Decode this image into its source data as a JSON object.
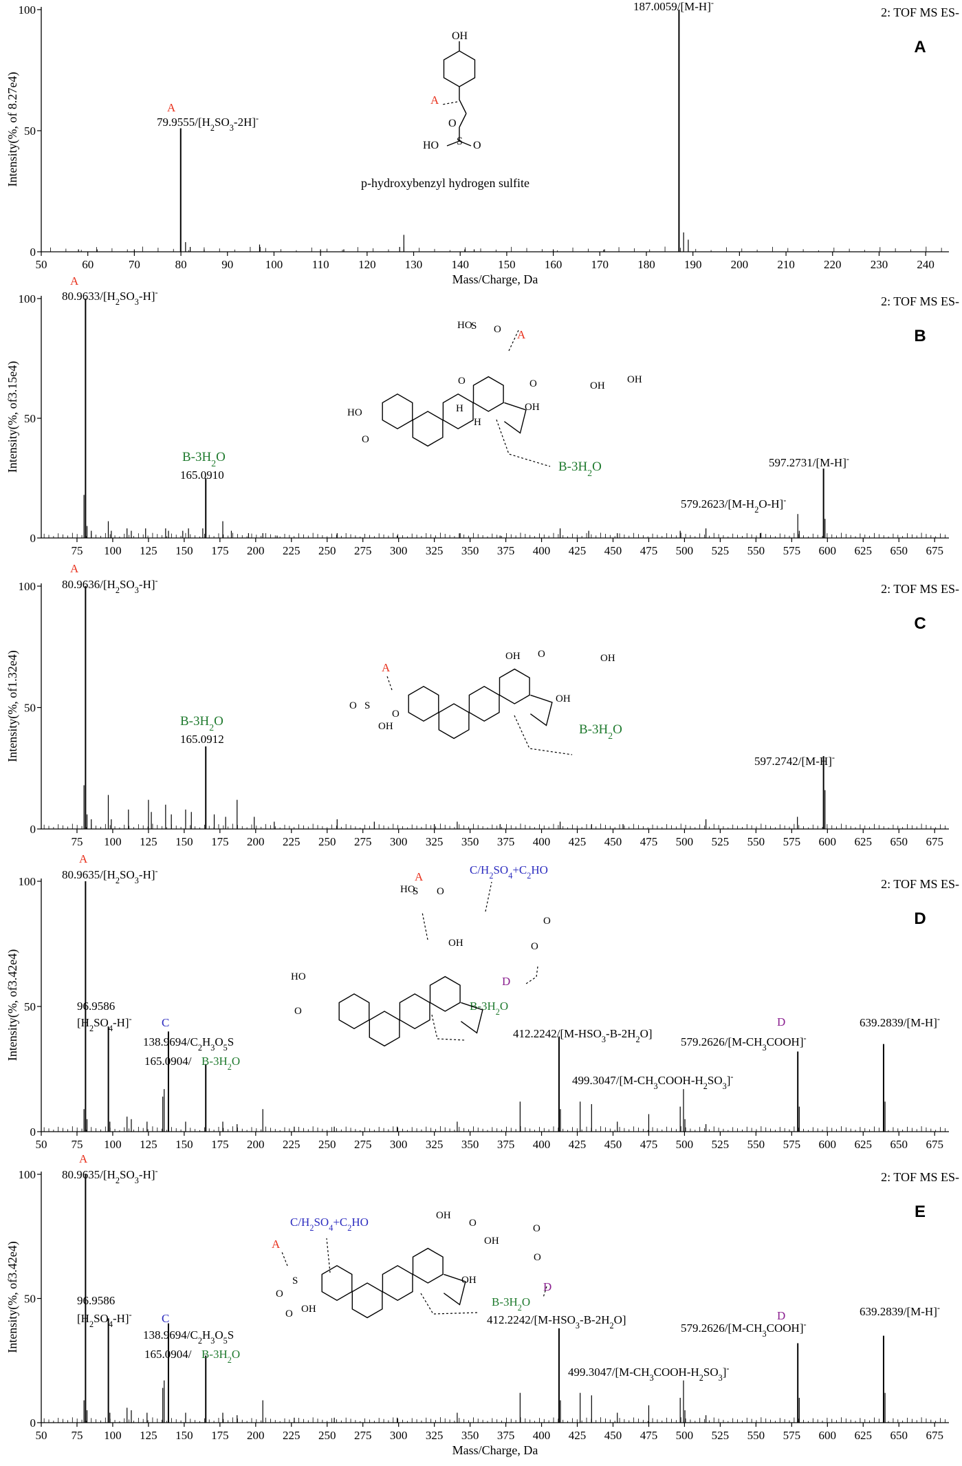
{
  "chart_data": [
    {
      "type": "bar",
      "panel_letter": "A",
      "scan_label": "2: TOF MS ES-",
      "ylabel": "Intensity(%, of 8.27e4)",
      "xlabel": "Mass/Charge, Da",
      "xlim": [
        50,
        245
      ],
      "ylim": [
        0,
        100
      ],
      "xticks": [
        50,
        60,
        70,
        80,
        90,
        100,
        110,
        120,
        130,
        140,
        150,
        160,
        170,
        180,
        190,
        200,
        210,
        220,
        230,
        240
      ],
      "yticks": [
        0,
        50,
        100
      ],
      "peaks": [
        {
          "x": 79.9555,
          "y": 51
        },
        {
          "x": 81.0,
          "y": 4
        },
        {
          "x": 82.0,
          "y": 2
        },
        {
          "x": 96.9,
          "y": 3
        },
        {
          "x": 97.0,
          "y": 2
        },
        {
          "x": 127.0,
          "y": 2
        },
        {
          "x": 127.9,
          "y": 7
        },
        {
          "x": 141.0,
          "y": 1
        },
        {
          "x": 143.0,
          "y": 1
        },
        {
          "x": 187.0059,
          "y": 100
        },
        {
          "x": 188.0,
          "y": 8
        },
        {
          "x": 189.0,
          "y": 5
        },
        {
          "x": 58.0,
          "y": 1
        },
        {
          "x": 62.0,
          "y": 1
        },
        {
          "x": 70.0,
          "y": 1
        },
        {
          "x": 85.0,
          "y": 1
        },
        {
          "x": 110.0,
          "y": 1
        },
        {
          "x": 115.0,
          "y": 1
        },
        {
          "x": 160.0,
          "y": 1
        },
        {
          "x": 171.0,
          "y": 1
        }
      ],
      "annotations": [
        {
          "text": "79.9555/[H2SO3-2H]-",
          "x": 79.9555
        },
        {
          "text": "187.0059/[M-H]-",
          "x": 187.0059
        }
      ],
      "fragment_labels": [
        {
          "text": "A",
          "x": 79.9555
        }
      ],
      "structure_caption": "p-hydroxybenzyl hydrogen sulfite"
    },
    {
      "type": "bar",
      "panel_letter": "B",
      "scan_label": "2: TOF MS ES-",
      "ylabel": "Intensity(%, of3.15e4)",
      "xlim": [
        50,
        685
      ],
      "ylim": [
        0,
        100
      ],
      "xticks": [
        75,
        100,
        125,
        150,
        175,
        200,
        225,
        250,
        275,
        300,
        325,
        350,
        375,
        400,
        425,
        450,
        475,
        500,
        525,
        550,
        575,
        600,
        625,
        650,
        675
      ],
      "yticks": [
        0,
        50,
        100
      ],
      "peaks": [
        {
          "x": 80.9633,
          "y": 100
        },
        {
          "x": 79.9,
          "y": 18
        },
        {
          "x": 82.0,
          "y": 5
        },
        {
          "x": 85.0,
          "y": 3
        },
        {
          "x": 96.9,
          "y": 7
        },
        {
          "x": 99.0,
          "y": 3
        },
        {
          "x": 110.0,
          "y": 4
        },
        {
          "x": 113.0,
          "y": 3
        },
        {
          "x": 123.0,
          "y": 4
        },
        {
          "x": 137.0,
          "y": 4
        },
        {
          "x": 139.0,
          "y": 3
        },
        {
          "x": 149.0,
          "y": 3
        },
        {
          "x": 153.0,
          "y": 4
        },
        {
          "x": 163.0,
          "y": 4
        },
        {
          "x": 165.091,
          "y": 25
        },
        {
          "x": 177.0,
          "y": 7
        },
        {
          "x": 183.0,
          "y": 3
        },
        {
          "x": 195.0,
          "y": 2
        },
        {
          "x": 205.0,
          "y": 2
        },
        {
          "x": 215.0,
          "y": 1
        },
        {
          "x": 257.0,
          "y": 2
        },
        {
          "x": 299.0,
          "y": 1
        },
        {
          "x": 343.0,
          "y": 2
        },
        {
          "x": 371.0,
          "y": 1
        },
        {
          "x": 413.0,
          "y": 4
        },
        {
          "x": 433.0,
          "y": 3
        },
        {
          "x": 453.0,
          "y": 2
        },
        {
          "x": 497.0,
          "y": 3
        },
        {
          "x": 515.0,
          "y": 4
        },
        {
          "x": 553.0,
          "y": 2
        },
        {
          "x": 579.2623,
          "y": 10
        },
        {
          "x": 580.3,
          "y": 3
        },
        {
          "x": 597.2731,
          "y": 29
        },
        {
          "x": 598.3,
          "y": 8
        }
      ],
      "annotations": [
        {
          "text": "80.9633/[H2SO3-H]-",
          "x": 80.9633
        },
        {
          "text": "165.0910",
          "x": 165.091
        },
        {
          "text": "579.2623/[M-H2O-H]-",
          "x": 579.2623
        },
        {
          "text": "597.2731/[M-H]-",
          "x": 597.2731
        }
      ],
      "fragment_labels": [
        {
          "text": "A",
          "x": 80.9633
        },
        {
          "text": "B-3H2O",
          "x": 165.091
        }
      ],
      "structure_labels": [
        "A",
        "B-3H2O"
      ]
    },
    {
      "type": "bar",
      "panel_letter": "C",
      "scan_label": "2: TOF MS ES-",
      "ylabel": "Intensity(%, of1.32e4)",
      "xlim": [
        50,
        685
      ],
      "ylim": [
        0,
        100
      ],
      "xticks": [
        75,
        100,
        125,
        150,
        175,
        200,
        225,
        250,
        275,
        300,
        325,
        350,
        375,
        400,
        425,
        450,
        475,
        500,
        525,
        550,
        575,
        600,
        625,
        650,
        675
      ],
      "yticks": [
        0,
        50,
        100
      ],
      "peaks": [
        {
          "x": 80.9636,
          "y": 100
        },
        {
          "x": 79.9,
          "y": 18
        },
        {
          "x": 82.0,
          "y": 6
        },
        {
          "x": 85.0,
          "y": 4
        },
        {
          "x": 96.9,
          "y": 14
        },
        {
          "x": 99.0,
          "y": 4
        },
        {
          "x": 111.0,
          "y": 8
        },
        {
          "x": 125.0,
          "y": 12
        },
        {
          "x": 127.0,
          "y": 7
        },
        {
          "x": 137.0,
          "y": 10
        },
        {
          "x": 141.0,
          "y": 6
        },
        {
          "x": 151.0,
          "y": 8
        },
        {
          "x": 155.0,
          "y": 7
        },
        {
          "x": 165.0912,
          "y": 34
        },
        {
          "x": 171.0,
          "y": 6
        },
        {
          "x": 179.0,
          "y": 5
        },
        {
          "x": 187.0,
          "y": 12
        },
        {
          "x": 199.0,
          "y": 5
        },
        {
          "x": 213.0,
          "y": 3
        },
        {
          "x": 257.0,
          "y": 4
        },
        {
          "x": 283.0,
          "y": 3
        },
        {
          "x": 325.0,
          "y": 2
        },
        {
          "x": 341.0,
          "y": 3
        },
        {
          "x": 371.0,
          "y": 2
        },
        {
          "x": 413.0,
          "y": 3
        },
        {
          "x": 435.0,
          "y": 2
        },
        {
          "x": 457.0,
          "y": 2
        },
        {
          "x": 515.0,
          "y": 4
        },
        {
          "x": 579.0,
          "y": 5
        },
        {
          "x": 597.2742,
          "y": 30
        },
        {
          "x": 598.3,
          "y": 16
        }
      ],
      "annotations": [
        {
          "text": "80.9636/[H2SO3-H]-",
          "x": 80.9636
        },
        {
          "text": "165.0912",
          "x": 165.0912
        },
        {
          "text": "597.2742/[M-H]-",
          "x": 597.2742
        }
      ],
      "fragment_labels": [
        {
          "text": "A",
          "x": 80.9636
        },
        {
          "text": "B-3H2O",
          "x": 165.0912
        }
      ],
      "structure_labels": [
        "A",
        "B-3H2O"
      ]
    },
    {
      "type": "bar",
      "panel_letter": "D",
      "scan_label": "2: TOF MS ES-",
      "ylabel": "Intensity(%, of3.42e4)",
      "xlim": [
        50,
        685
      ],
      "ylim": [
        0,
        100
      ],
      "xticks": [
        50,
        75,
        100,
        125,
        150,
        175,
        200,
        225,
        250,
        275,
        300,
        325,
        350,
        375,
        400,
        425,
        450,
        475,
        500,
        525,
        550,
        575,
        600,
        625,
        650,
        675
      ],
      "yticks": [
        0,
        50,
        100
      ],
      "peaks": [
        {
          "x": 80.9635,
          "y": 100
        },
        {
          "x": 79.9,
          "y": 9
        },
        {
          "x": 82.0,
          "y": 5
        },
        {
          "x": 96.9586,
          "y": 42
        },
        {
          "x": 98.0,
          "y": 4
        },
        {
          "x": 110.0,
          "y": 6
        },
        {
          "x": 113.0,
          "y": 5
        },
        {
          "x": 124.0,
          "y": 4
        },
        {
          "x": 135.0,
          "y": 14
        },
        {
          "x": 136.0,
          "y": 17
        },
        {
          "x": 138.9694,
          "y": 40
        },
        {
          "x": 151.0,
          "y": 4
        },
        {
          "x": 165.0904,
          "y": 27
        },
        {
          "x": 177.0,
          "y": 4
        },
        {
          "x": 187.0,
          "y": 3
        },
        {
          "x": 205.0,
          "y": 9
        },
        {
          "x": 227.0,
          "y": 2
        },
        {
          "x": 255.0,
          "y": 2
        },
        {
          "x": 299.0,
          "y": 2
        },
        {
          "x": 341.0,
          "y": 4
        },
        {
          "x": 385.0,
          "y": 12
        },
        {
          "x": 412.2242,
          "y": 38
        },
        {
          "x": 413.2,
          "y": 9
        },
        {
          "x": 427.0,
          "y": 12
        },
        {
          "x": 435.0,
          "y": 11
        },
        {
          "x": 453.0,
          "y": 4
        },
        {
          "x": 475.0,
          "y": 7
        },
        {
          "x": 497.0,
          "y": 10
        },
        {
          "x": 499.3047,
          "y": 17
        },
        {
          "x": 500.3,
          "y": 5
        },
        {
          "x": 515.0,
          "y": 3
        },
        {
          "x": 579.2626,
          "y": 32
        },
        {
          "x": 580.3,
          "y": 10
        },
        {
          "x": 639.2839,
          "y": 35
        },
        {
          "x": 640.3,
          "y": 12
        }
      ],
      "annotations": [
        {
          "text": "80.9635/[H2SO3-H]-",
          "x": 80.9635
        },
        {
          "text": "96.9586",
          "x": 96.9586
        },
        {
          "text": "[H2SO4-H]-",
          "x": 96.9586
        },
        {
          "text": "138.9694/C2H3O5S",
          "x": 138.9694
        },
        {
          "text": "165.0904/",
          "x": 165.0904
        },
        {
          "text": "412.2242/[M-HSO3-B-2H2O]",
          "x": 412.2242
        },
        {
          "text": "499.3047/[M-CH3COOH-H2SO3]-",
          "x": 499.3047
        },
        {
          "text": "579.2626/[M-CH3COOH]-",
          "x": 579.2626
        },
        {
          "text": "639.2839/[M-H]-",
          "x": 639.2839
        }
      ],
      "fragment_labels": [
        {
          "text": "A",
          "x": 80.9635
        },
        {
          "text": "C",
          "x": 138.9694
        },
        {
          "text": "B-3H2O",
          "x": 165.0904
        },
        {
          "text": "D",
          "x": 579.2626
        }
      ],
      "structure_labels": [
        "A",
        "C/H2SO4+C2HO",
        "D",
        "B-3H2O"
      ]
    },
    {
      "type": "bar",
      "panel_letter": "E",
      "scan_label": "2: TOF MS ES-",
      "ylabel": "Intensity(%, of3.42e4)",
      "xlabel": "Mass/Charge, Da",
      "xlim": [
        50,
        685
      ],
      "ylim": [
        0,
        100
      ],
      "xticks": [
        50,
        75,
        100,
        125,
        150,
        175,
        200,
        225,
        250,
        275,
        300,
        325,
        350,
        375,
        400,
        425,
        450,
        475,
        500,
        525,
        550,
        575,
        600,
        625,
        650,
        675
      ],
      "yticks": [
        0,
        50,
        100
      ],
      "peaks": [
        {
          "x": 80.9635,
          "y": 100
        },
        {
          "x": 79.9,
          "y": 9
        },
        {
          "x": 82.0,
          "y": 5
        },
        {
          "x": 96.9586,
          "y": 42
        },
        {
          "x": 98.0,
          "y": 4
        },
        {
          "x": 110.0,
          "y": 6
        },
        {
          "x": 113.0,
          "y": 5
        },
        {
          "x": 124.0,
          "y": 4
        },
        {
          "x": 135.0,
          "y": 14
        },
        {
          "x": 136.0,
          "y": 17
        },
        {
          "x": 138.9694,
          "y": 40
        },
        {
          "x": 151.0,
          "y": 4
        },
        {
          "x": 165.0904,
          "y": 27
        },
        {
          "x": 177.0,
          "y": 4
        },
        {
          "x": 187.0,
          "y": 3
        },
        {
          "x": 205.0,
          "y": 9
        },
        {
          "x": 227.0,
          "y": 2
        },
        {
          "x": 255.0,
          "y": 2
        },
        {
          "x": 299.0,
          "y": 2
        },
        {
          "x": 341.0,
          "y": 4
        },
        {
          "x": 385.0,
          "y": 12
        },
        {
          "x": 412.2242,
          "y": 38
        },
        {
          "x": 413.2,
          "y": 9
        },
        {
          "x": 427.0,
          "y": 12
        },
        {
          "x": 435.0,
          "y": 11
        },
        {
          "x": 453.0,
          "y": 4
        },
        {
          "x": 475.0,
          "y": 7
        },
        {
          "x": 497.0,
          "y": 10
        },
        {
          "x": 499.3047,
          "y": 17
        },
        {
          "x": 500.3,
          "y": 5
        },
        {
          "x": 515.0,
          "y": 3
        },
        {
          "x": 579.2626,
          "y": 32
        },
        {
          "x": 580.3,
          "y": 10
        },
        {
          "x": 639.2839,
          "y": 35
        },
        {
          "x": 640.3,
          "y": 12
        }
      ],
      "annotations": [
        {
          "text": "80.9635/[H2SO3-H]-",
          "x": 80.9635
        },
        {
          "text": "96.9586",
          "x": 96.9586
        },
        {
          "text": "[H2SO4-H]-",
          "x": 96.9586
        },
        {
          "text": "138.9694/C2H3O5S",
          "x": 138.9694
        },
        {
          "text": "165.0904/",
          "x": 165.0904
        },
        {
          "text": "412.2242/[M-HSO3-B-2H2O]",
          "x": 412.2242
        },
        {
          "text": "499.3047/[M-CH3COOH-H2SO3]-",
          "x": 499.3047
        },
        {
          "text": "579.2626/[M-CH3COOH]-",
          "x": 579.2626
        },
        {
          "text": "639.2839/[M-H]-",
          "x": 639.2839
        }
      ],
      "fragment_labels": [
        {
          "text": "A",
          "x": 80.9635
        },
        {
          "text": "C",
          "x": 138.9694
        },
        {
          "text": "B-3H2O",
          "x": 165.0904
        },
        {
          "text": "D",
          "x": 579.2626
        }
      ],
      "structure_labels": [
        "A",
        "C/H2SO4+C2HO",
        "D",
        "B-3H2O"
      ]
    }
  ],
  "colors": {
    "fragment_A": "#e8321e",
    "fragment_B": "#1f7a2e",
    "fragment_C": "#2b2bbf",
    "fragment_D": "#8a1f8f"
  }
}
